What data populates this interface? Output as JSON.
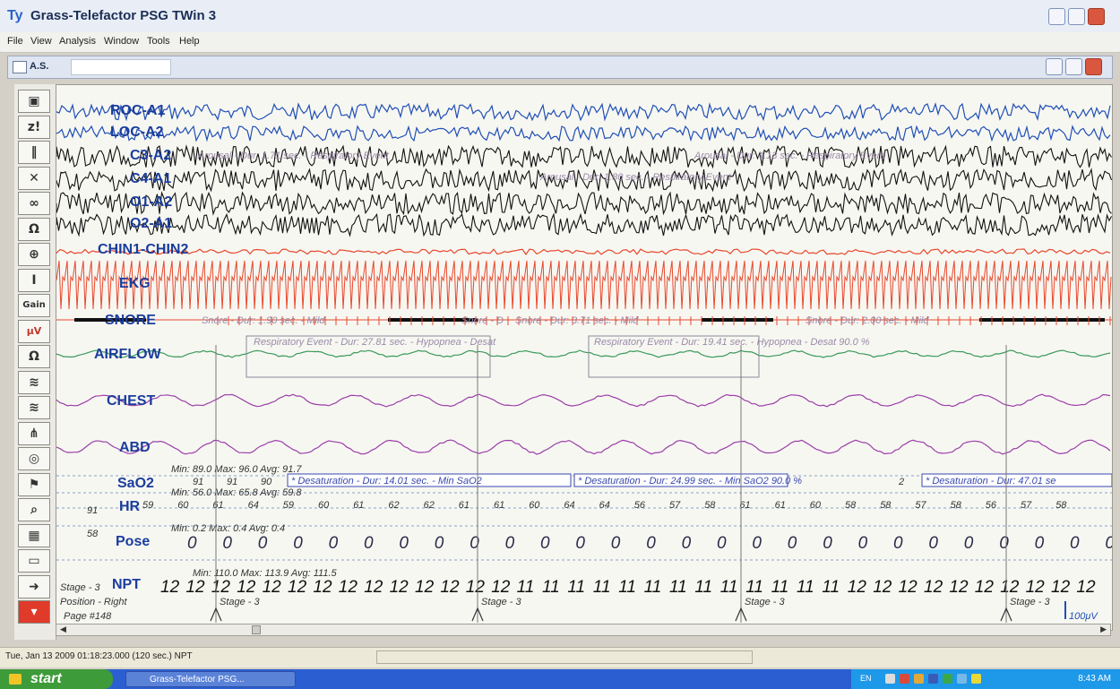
{
  "app": {
    "title": "Grass-Telefactor PSG TWin 3",
    "logo": "Ty"
  },
  "menu": [
    "File",
    "View",
    "Analysis",
    "Window",
    "Tools",
    "Help"
  ],
  "document": {
    "tab_label": "A.S."
  },
  "toolbar_icons": [
    "record-icon",
    "zoom-icon",
    "pause-icon",
    "close-icon",
    "glasses-icon",
    "impedance-icon",
    "target-icon",
    "cursor-icon",
    "gain-icon",
    "microvolt-icon",
    "ohm-icon",
    "filter-icon",
    "filter2-icon",
    "montage-icon",
    "alarm-icon",
    "people-icon",
    "search-icon",
    "grid-icon",
    "camera-icon",
    "export-icon",
    "dropdown-icon"
  ],
  "toolbar_labels": {
    "gain": "Gain",
    "z": "z!",
    "ohm": "Ω",
    "uv": "μV"
  },
  "colors": {
    "eog": "#1f4fb5",
    "eeg": "#111111",
    "emg": "#e8482c",
    "airflow": "#3a9a5a",
    "effort": "#9b3ea8",
    "label": "#1a3d9c",
    "annotation": "#9a8aa8"
  },
  "channels": [
    {
      "label": "ROC-A1",
      "color_key": "eog"
    },
    {
      "label": "LOC-A2",
      "color_key": "eog"
    },
    {
      "label": "C3-A2",
      "color_key": "eeg"
    },
    {
      "label": "C4-A1",
      "color_key": "eeg"
    },
    {
      "label": "O1-A2",
      "color_key": "eeg"
    },
    {
      "label": "O2-A1",
      "color_key": "eeg"
    },
    {
      "label": "CHIN1-CHIN2",
      "color_key": "emg"
    },
    {
      "label": "EKG",
      "color_key": "emg"
    },
    {
      "label": "SNORE",
      "color_key": "eeg"
    },
    {
      "label": "AIRFLOW",
      "color_key": "airflow"
    },
    {
      "label": "CHEST",
      "color_key": "effort"
    },
    {
      "label": "ABD",
      "color_key": "effort"
    },
    {
      "label": "SaO2",
      "color_key": "label"
    },
    {
      "label": "HR",
      "color_key": "label"
    },
    {
      "label": "Pose",
      "color_key": "label"
    },
    {
      "label": "NPT",
      "color_key": "label"
    }
  ],
  "annotations": {
    "arousals": [
      "Arousal - Dur: 1.71 sec. - Respiratory Event",
      "Arousal - Dur: 1.80 sec. - Respiratory Event",
      "Arousal - Dur: 4.13 sec. - Respiratory Event"
    ],
    "snores": [
      "Snore - Dur: 1.90 sec. - Mild",
      "Snore - Dur: 3.71 sec. - Mild",
      "Snore - Dur: 2.00 sec. - Mild"
    ],
    "snore_prefix": "Snore - D",
    "respiratory": [
      "Respiratory Event - Dur: 27.81 sec. - Hypopnea - Desat",
      "Respiratory Event - Dur: 19.41 sec. - Hypopnea - Desat 90.0 %"
    ],
    "desaturations": [
      "* Desaturation - Dur: 14.01 sec. - Min SaO2",
      "* Desaturation - Dur: 24.99 sec. - Min SaO2 90.0 %",
      "* Desaturation - Dur: 47.01 se"
    ]
  },
  "stats": {
    "sao2": "Min: 89.0 Max: 96.0 Avg: 91.7",
    "hr": "Min: 56.0 Max: 65.8 Avg: 59.8",
    "pose": "Min: 0.2 Max: 0.4 Avg: 0.4",
    "npt": "Min: 110.0 Max: 113.9 Avg: 111.5"
  },
  "side_values": {
    "sao2": "91",
    "hr": "58"
  },
  "sao2_small": [
    "91",
    "91",
    "90"
  ],
  "sao2_tail": "2",
  "hr_values": [
    "59",
    "60",
    "61",
    "64",
    "59",
    "60",
    "61",
    "62",
    "62",
    "61",
    "61",
    "60",
    "64",
    "64",
    "56",
    "57",
    "58",
    "61",
    "61",
    "60",
    "58",
    "58",
    "57",
    "58",
    "56",
    "57",
    "58"
  ],
  "pose_values": [
    "0",
    "0",
    "0",
    "0",
    "0",
    "0",
    "0",
    "0",
    "0",
    "0",
    "0",
    "0",
    "0",
    "0",
    "0",
    "0",
    "0",
    "0",
    "0",
    "0",
    "0",
    "0",
    "0",
    "0",
    "0",
    "0",
    "0"
  ],
  "npt_values": [
    "12",
    "12",
    "12",
    "12",
    "12",
    "12",
    "12",
    "12",
    "12",
    "12",
    "12",
    "12",
    "12",
    "12",
    "11",
    "11",
    "11",
    "11",
    "11",
    "11",
    "11",
    "11",
    "11",
    "11",
    "11",
    "11",
    "11",
    "12",
    "12",
    "12",
    "12",
    "12",
    "12",
    "12",
    "12",
    "12",
    "12"
  ],
  "stages": [
    {
      "label": "Stage - 3"
    },
    {
      "label": "Stage - 3"
    },
    {
      "label": "Stage - 3"
    },
    {
      "label": "Stage - 3"
    },
    {
      "label": "Stage - 3"
    }
  ],
  "footer_info": {
    "stage": "Stage - 3",
    "position": "Position - Right",
    "page": "Page #148"
  },
  "scale": "100μV",
  "status": {
    "text": "Tue, Jan 13 2009 01:18:23.000 (120 sec.) NPT"
  },
  "taskbar": {
    "start": "start",
    "task_label": "Grass-Telefactor PSG...",
    "lang": "EN",
    "clock": "8:43 AM"
  }
}
